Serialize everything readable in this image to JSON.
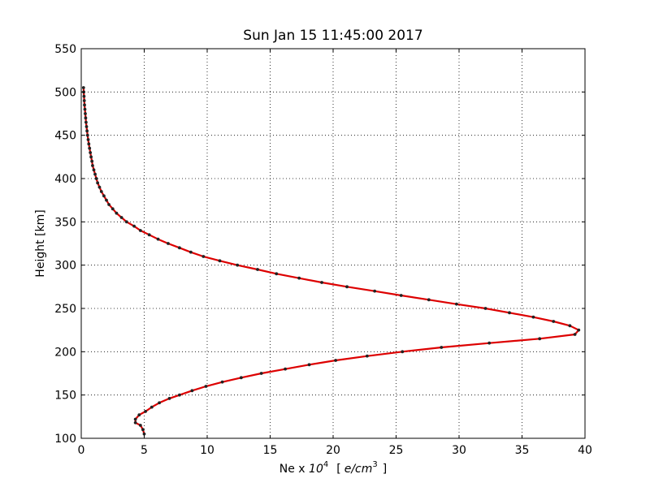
{
  "chart_data": {
    "type": "line",
    "title": "Sun Jan 15 11:45:00 2017",
    "xlabel": {
      "prefix": "Ne x ",
      "base": "10",
      "exp": "4",
      "unit_open": "[",
      "unit_var": "e/cm",
      "unit_exp": "3",
      "unit_close": "]"
    },
    "ylabel": "Height [km]",
    "xlim": [
      0,
      40
    ],
    "ylim": [
      100,
      550
    ],
    "xticks": [
      0,
      5,
      10,
      15,
      20,
      25,
      30,
      35,
      40
    ],
    "yticks": [
      100,
      150,
      200,
      250,
      300,
      350,
      400,
      450,
      500,
      550
    ],
    "grid": true,
    "line_color": "#dd0000",
    "marker_color": "#222222",
    "series": [
      {
        "x": [
          5.0,
          4.9,
          4.7,
          4.3,
          4.3,
          4.6,
          5.1,
          5.6,
          6.2,
          7.0,
          7.8,
          8.8,
          9.9,
          11.2,
          12.7,
          14.3,
          16.2,
          18.1,
          20.2,
          22.7,
          25.5,
          28.6,
          32.4,
          36.4,
          39.2,
          39.5,
          38.8,
          37.5,
          35.9,
          34.0,
          32.1,
          29.8,
          27.6,
          25.4,
          23.3,
          21.1,
          19.1,
          17.3,
          15.5,
          14.0,
          12.4,
          11.0,
          9.7,
          8.7,
          7.8,
          6.9,
          6.1,
          5.4,
          4.7,
          4.2,
          3.6,
          3.2,
          2.8,
          2.5,
          2.2,
          2.0,
          1.8,
          1.6,
          1.45,
          1.3,
          1.2,
          1.1,
          1.0,
          0.9,
          0.85,
          0.78,
          0.72,
          0.66,
          0.6,
          0.55,
          0.5,
          0.46,
          0.42,
          0.38,
          0.35,
          0.32,
          0.29,
          0.26,
          0.24,
          0.22,
          0.2,
          0.18
        ],
        "y": [
          105,
          110,
          115,
          118,
          122,
          127,
          131,
          136,
          141,
          146,
          150,
          155,
          160,
          165,
          170,
          175,
          180,
          185,
          190,
          195,
          200,
          205,
          210,
          215,
          220,
          225,
          230,
          235,
          240,
          245,
          250,
          255,
          260,
          265,
          270,
          275,
          280,
          285,
          290,
          295,
          300,
          305,
          310,
          315,
          320,
          325,
          330,
          335,
          340,
          345,
          350,
          355,
          360,
          365,
          370,
          375,
          380,
          385,
          390,
          395,
          400,
          405,
          410,
          415,
          420,
          425,
          430,
          435,
          440,
          445,
          450,
          455,
          460,
          465,
          470,
          475,
          480,
          485,
          490,
          495,
          500,
          505
        ]
      }
    ]
  }
}
